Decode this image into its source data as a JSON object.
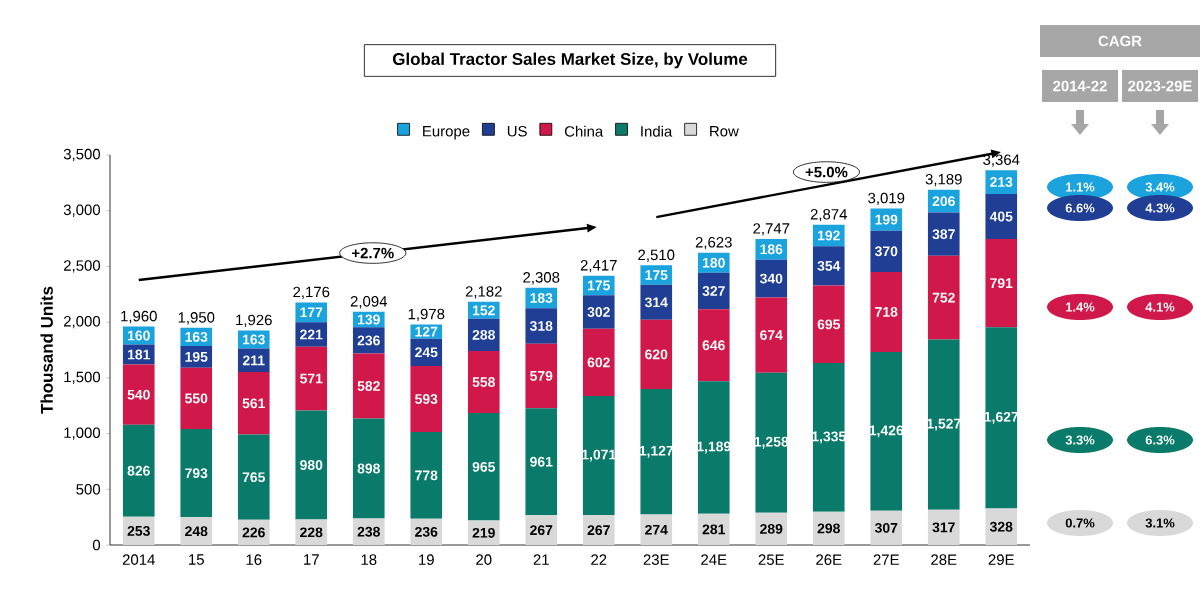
{
  "chart_data": {
    "type": "bar",
    "stacked": true,
    "title": "Global Tractor Sales Market Size, by Volume",
    "ylabel": "Thousand Units",
    "categories": [
      "2014",
      "15",
      "16",
      "17",
      "18",
      "19",
      "20",
      "21",
      "22",
      "23E",
      "24E",
      "25E",
      "26E",
      "27E",
      "28E",
      "29E"
    ],
    "series": [
      {
        "name": "Row",
        "color": "#d9d9d9",
        "values": [
          253,
          248,
          226,
          228,
          238,
          236,
          219,
          267,
          267,
          274,
          281,
          289,
          298,
          307,
          317,
          328
        ],
        "value_labels": [
          "253",
          "248",
          "226",
          "228",
          "238",
          "236",
          "219",
          "267",
          "267",
          "274",
          "281",
          "289",
          "298",
          "307",
          "317",
          "328"
        ]
      },
      {
        "name": "India",
        "color": "#0a7a6a",
        "values": [
          826,
          793,
          765,
          980,
          898,
          778,
          965,
          961,
          1071,
          1127,
          1189,
          1258,
          1335,
          1426,
          1527,
          1627
        ],
        "value_labels": [
          "826",
          "793",
          "765",
          "980",
          "898",
          "778",
          "965",
          "961",
          "1,071",
          "1,127",
          "1,189",
          "1,258",
          "1,335",
          "1,426",
          "1,527",
          "1,627"
        ]
      },
      {
        "name": "China",
        "color": "#d1184a",
        "values": [
          540,
          550,
          561,
          571,
          582,
          593,
          558,
          579,
          602,
          620,
          646,
          674,
          695,
          718,
          752,
          791
        ],
        "value_labels": [
          "540",
          "550",
          "561",
          "571",
          "582",
          "593",
          "558",
          "579",
          "602",
          "620",
          "646",
          "674",
          "695",
          "718",
          "752",
          "791"
        ]
      },
      {
        "name": "US",
        "color": "#1f3e94",
        "values": [
          181,
          195,
          211,
          221,
          236,
          245,
          288,
          318,
          302,
          314,
          327,
          340,
          354,
          370,
          387,
          405
        ],
        "value_labels": [
          "181",
          "195",
          "211",
          "221",
          "236",
          "245",
          "288",
          "318",
          "302",
          "314",
          "327",
          "340",
          "354",
          "370",
          "387",
          "405"
        ]
      },
      {
        "name": "Europe",
        "color": "#1aa3dc",
        "values": [
          160,
          163,
          163,
          177,
          139,
          127,
          152,
          183,
          175,
          175,
          180,
          186,
          192,
          199,
          206,
          213
        ],
        "value_labels": [
          "160",
          "163",
          "163",
          "177",
          "139",
          "127",
          "152",
          "183",
          "175",
          "175",
          "180",
          "186",
          "192",
          "199",
          "206",
          "213"
        ]
      }
    ],
    "totals": [
      "1,960",
      "1,950",
      "1,926",
      "2,176",
      "2,094",
      "1,978",
      "2,182",
      "2,308",
      "2,417",
      "2,510",
      "2,623",
      "2,747",
      "2,874",
      "3,019",
      "3,189",
      "3,364"
    ],
    "ylim": [
      0,
      3500
    ],
    "yticks": [
      {
        "value": 0,
        "label": "0"
      },
      {
        "value": 500,
        "label": "500"
      },
      {
        "value": 1000,
        "label": "1,000"
      },
      {
        "value": 1500,
        "label": "1,500"
      },
      {
        "value": 2000,
        "label": "2,000"
      },
      {
        "value": 2500,
        "label": "2,500"
      },
      {
        "value": 3000,
        "label": "3,000"
      },
      {
        "value": 3500,
        "label": "3,500"
      }
    ],
    "legend": "top",
    "annotations": [
      "+2.7%",
      "+5.0%",
      "CAGR",
      "2014-22",
      "2023-29E",
      "1.1%",
      "3.4%",
      "6.6%",
      "4.3%",
      "1.4%",
      "4.1%",
      "3.3%",
      "6.3%",
      "0.7%",
      "3.1%"
    ]
  }
}
